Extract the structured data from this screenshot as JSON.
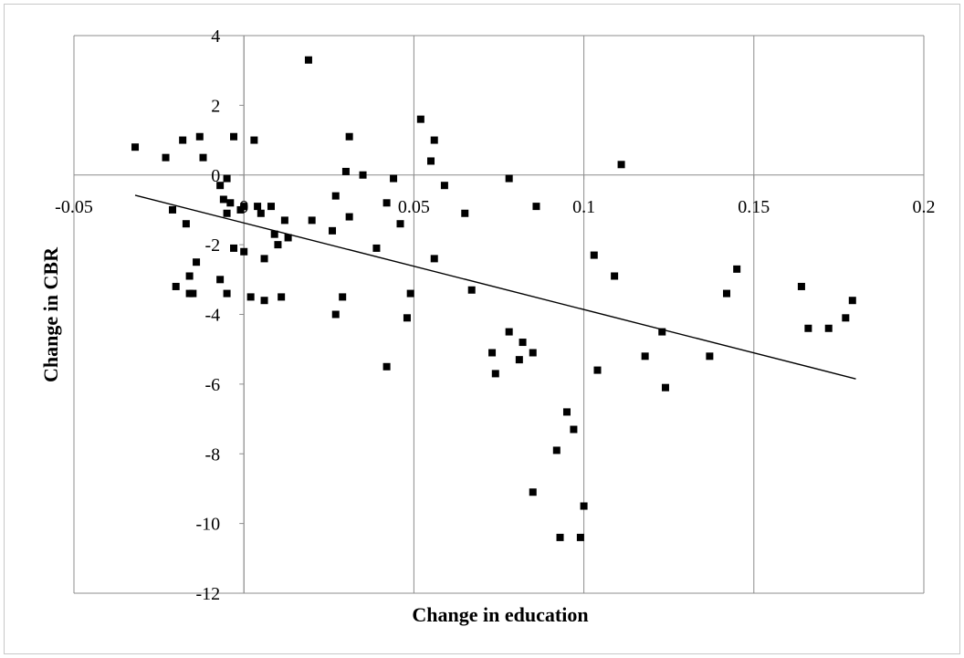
{
  "chart_data": {
    "type": "scatter",
    "title": "",
    "xlabel": "Change in education",
    "ylabel": "Change in CBR",
    "xlim": [
      -0.05,
      0.2
    ],
    "ylim": [
      -12,
      4
    ],
    "x_ticks": [
      -0.05,
      0,
      0.05,
      0.1,
      0.15,
      0.2
    ],
    "x_tick_labels": [
      "-0.05",
      "0",
      "0.05",
      "0.1",
      "0.15",
      "0.2"
    ],
    "y_ticks": [
      -12,
      -10,
      -8,
      -6,
      -4,
      -2,
      0,
      2,
      4
    ],
    "y_tick_labels": [
      "-12",
      "-10",
      "-8",
      "-6",
      "-4",
      "-2",
      "0",
      "2",
      "4"
    ],
    "grid": "vertical",
    "legend": "none",
    "marker_color": "#000000",
    "series": [
      {
        "points": [
          [
            -0.032,
            0.8
          ],
          [
            -0.023,
            0.5
          ],
          [
            -0.018,
            1.0
          ],
          [
            -0.013,
            1.1
          ],
          [
            -0.012,
            0.5
          ],
          [
            -0.003,
            1.1
          ],
          [
            0.003,
            1.0
          ],
          [
            -0.007,
            -0.3
          ],
          [
            -0.005,
            -0.1
          ],
          [
            -0.006,
            -0.7
          ],
          [
            -0.004,
            -0.8
          ],
          [
            -0.005,
            -1.1
          ],
          [
            -0.001,
            -1.0
          ],
          [
            0.0,
            -0.9
          ],
          [
            0.004,
            -0.9
          ],
          [
            0.005,
            -1.1
          ],
          [
            0.008,
            -0.9
          ],
          [
            -0.021,
            -1.0
          ],
          [
            -0.017,
            -1.4
          ],
          [
            0.009,
            -1.7
          ],
          [
            0.012,
            -1.3
          ],
          [
            0.013,
            -1.8
          ],
          [
            0.01,
            -2.0
          ],
          [
            -0.003,
            -2.1
          ],
          [
            0.0,
            -2.2
          ],
          [
            0.006,
            -2.4
          ],
          [
            -0.014,
            -2.5
          ],
          [
            -0.016,
            -2.9
          ],
          [
            -0.007,
            -3.0
          ],
          [
            -0.02,
            -3.2
          ],
          [
            -0.016,
            -3.4
          ],
          [
            -0.015,
            -3.4
          ],
          [
            -0.005,
            -3.4
          ],
          [
            0.002,
            -3.5
          ],
          [
            0.006,
            -3.6
          ],
          [
            0.011,
            -3.5
          ],
          [
            0.019,
            3.3
          ],
          [
            0.02,
            -1.3
          ],
          [
            0.026,
            -1.6
          ],
          [
            0.027,
            -0.6
          ],
          [
            0.03,
            0.1
          ],
          [
            0.031,
            1.1
          ],
          [
            0.031,
            -1.2
          ],
          [
            0.035,
            0.0
          ],
          [
            0.039,
            -2.1
          ],
          [
            0.042,
            -0.8
          ],
          [
            0.044,
            -0.1
          ],
          [
            0.046,
            -1.4
          ],
          [
            0.027,
            -4.0
          ],
          [
            0.029,
            -3.5
          ],
          [
            0.042,
            -5.5
          ],
          [
            0.048,
            -4.1
          ],
          [
            0.049,
            -3.4
          ],
          [
            0.052,
            1.6
          ],
          [
            0.055,
            0.4
          ],
          [
            0.056,
            1.0
          ],
          [
            0.059,
            -0.3
          ],
          [
            0.056,
            -2.4
          ],
          [
            0.065,
            -1.1
          ],
          [
            0.067,
            -3.3
          ],
          [
            0.078,
            -0.1
          ],
          [
            0.073,
            -5.1
          ],
          [
            0.074,
            -5.7
          ],
          [
            0.078,
            -4.5
          ],
          [
            0.081,
            -5.3
          ],
          [
            0.082,
            -4.8
          ],
          [
            0.086,
            -0.9
          ],
          [
            0.085,
            -5.1
          ],
          [
            0.085,
            -9.1
          ],
          [
            0.092,
            -7.9
          ],
          [
            0.095,
            -6.8
          ],
          [
            0.097,
            -7.3
          ],
          [
            0.093,
            -10.4
          ],
          [
            0.099,
            -10.4
          ],
          [
            0.1,
            -9.5
          ],
          [
            0.103,
            -2.3
          ],
          [
            0.104,
            -5.6
          ],
          [
            0.109,
            -2.9
          ],
          [
            0.111,
            0.3
          ],
          [
            0.118,
            -5.2
          ],
          [
            0.123,
            -4.5
          ],
          [
            0.124,
            -6.1
          ],
          [
            0.137,
            -5.2
          ],
          [
            0.142,
            -3.4
          ],
          [
            0.145,
            -2.7
          ],
          [
            0.164,
            -3.2
          ],
          [
            0.166,
            -4.4
          ],
          [
            0.172,
            -4.4
          ],
          [
            0.177,
            -4.1
          ],
          [
            0.179,
            -3.6
          ]
        ]
      }
    ],
    "trendline": {
      "x": [
        -0.032,
        0.18
      ],
      "y": [
        -0.58,
        -5.85
      ]
    }
  }
}
